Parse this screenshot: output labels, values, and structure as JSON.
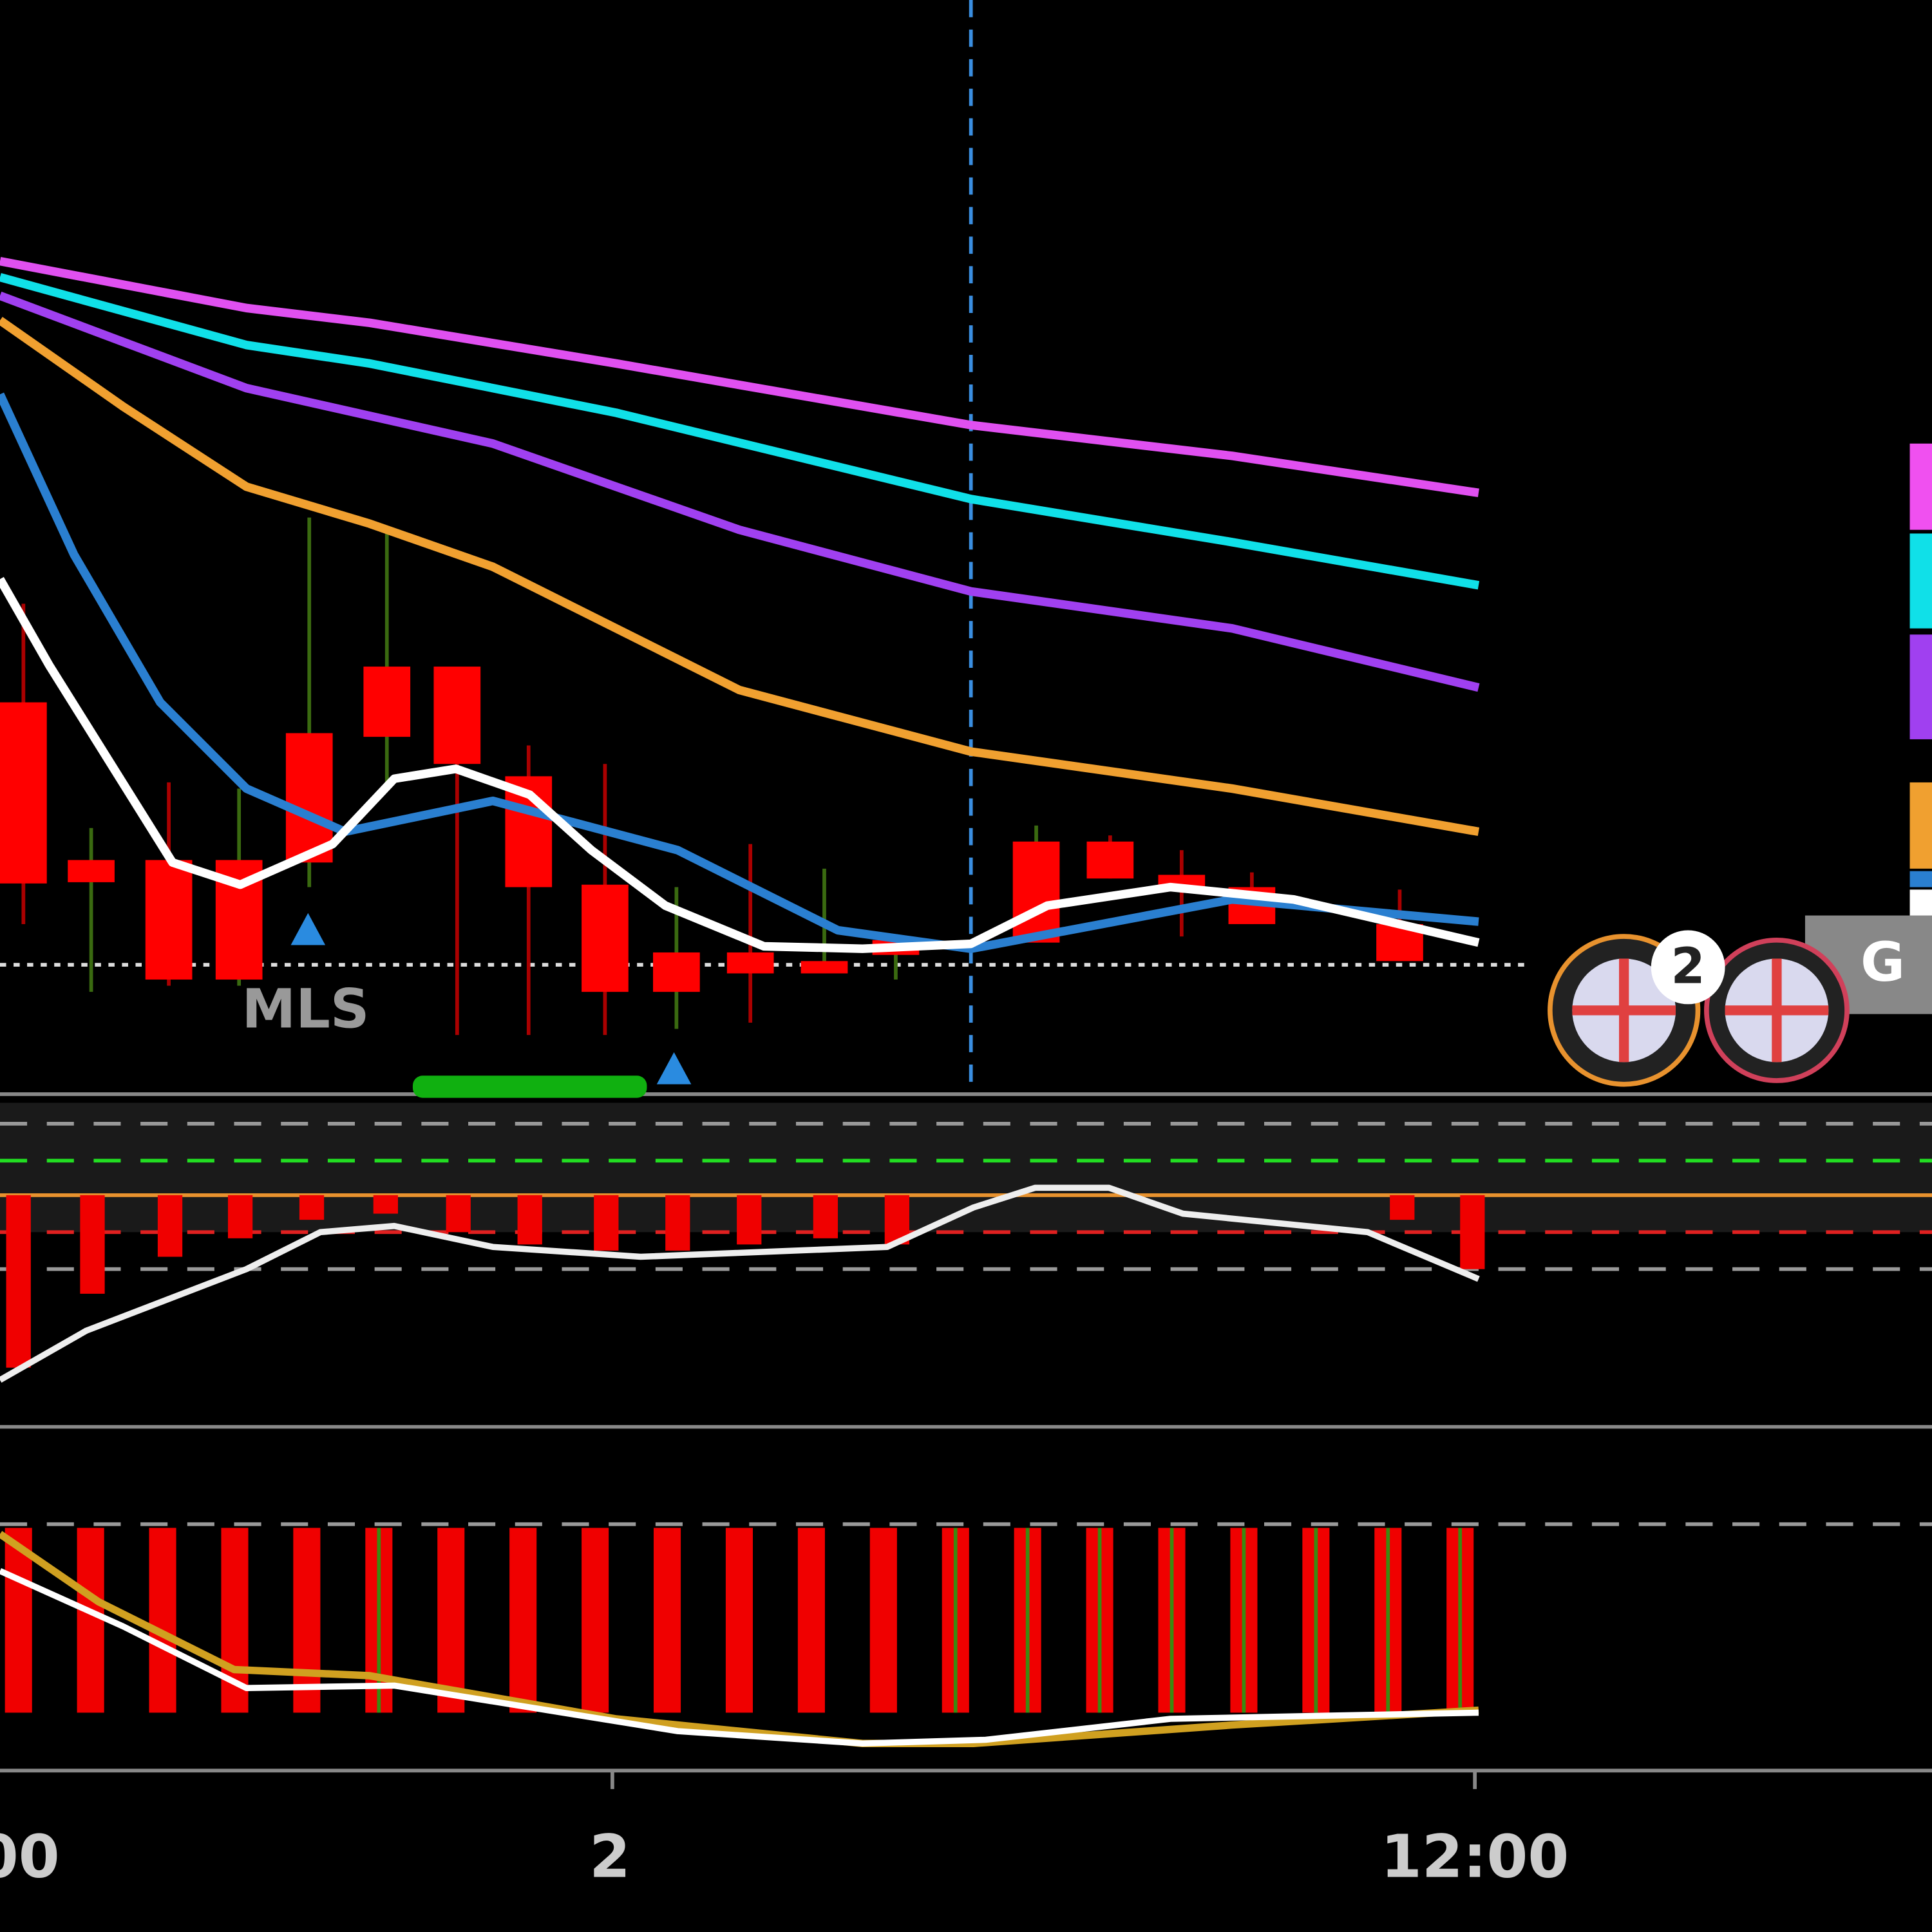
{
  "chart_area": {
    "label": "MLS",
    "event_badge": "2",
    "price_tag": "G"
  },
  "time_axis": {
    "labels": [
      "00",
      "2",
      "12:00"
    ]
  }
}
